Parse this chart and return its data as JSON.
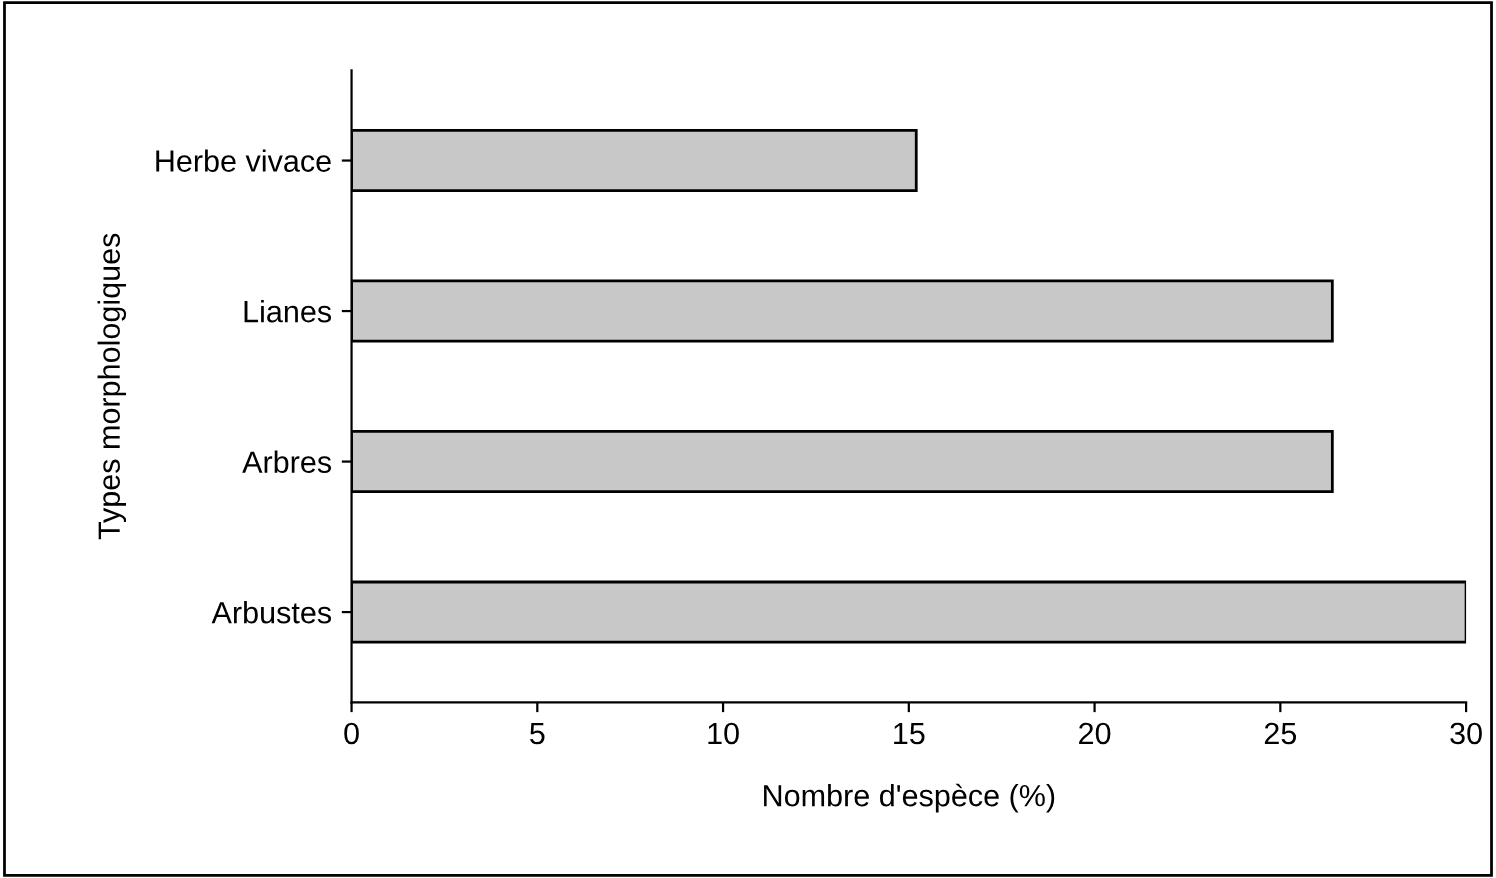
{
  "chart_data": {
    "type": "bar",
    "orientation": "horizontal",
    "xlabel": "Nombre d'espèce (%)",
    "ylabel": "Types morphologiques",
    "categories": [
      "Herbe vivace",
      "Lianes",
      "Arbres",
      "Arbustes"
    ],
    "values": [
      15.2,
      26.4,
      26.4,
      30
    ],
    "color": "#c8c8c8",
    "xlim": [
      0,
      30
    ],
    "xticks": [
      0,
      5,
      10,
      15,
      20,
      25,
      30
    ],
    "grid": false
  }
}
